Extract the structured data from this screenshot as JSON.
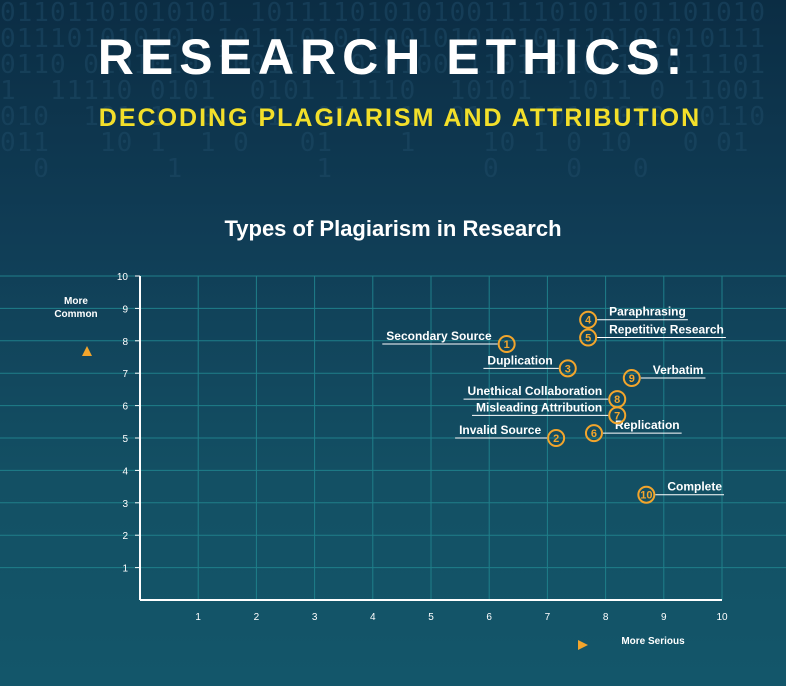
{
  "header": {
    "title": "RESEARCH ETHICS:",
    "subtitle": "DECODING PLAGIARISM AND ATTRIBUTION",
    "binary_rows": [
      "01101101010101 1011110101010011110101101101010",
      "011101010101 101110101100101010101110101010111",
      "0110 010101011001101 0101001110110100101011101",
      "1  11110 0101  0101 11110  10101  1011 0 11001",
      "010  101 1  0  01  01   1  01   101 1010  0110",
      "011   10 1  1 0   01    1    10 1 0 10   0 01",
      "  0       1        1         0    0   0   "
    ]
  },
  "colors": {
    "accent": "#f2a52c",
    "grid": "#1f7f8a",
    "axis": "#ffffff",
    "label": "#ffffff"
  },
  "chart_data": {
    "type": "scatter",
    "title": "Types of Plagiarism in Research",
    "xlabel": "More Serious",
    "ylabel": "More Common",
    "xlim": [
      0,
      10
    ],
    "ylim": [
      0,
      10
    ],
    "xticks": [
      1,
      2,
      3,
      4,
      5,
      6,
      7,
      8,
      9,
      10
    ],
    "yticks": [
      1,
      2,
      3,
      4,
      5,
      6,
      7,
      8,
      9,
      10
    ],
    "grid": true,
    "points": [
      {
        "id": "1",
        "label": "Secondary Source",
        "x": 6.3,
        "y": 7.9,
        "label_side": "left"
      },
      {
        "id": "2",
        "label": "Invalid Source",
        "x": 7.15,
        "y": 5.0,
        "label_side": "left"
      },
      {
        "id": "3",
        "label": "Duplication",
        "x": 7.35,
        "y": 7.15,
        "label_side": "left"
      },
      {
        "id": "4",
        "label": "Paraphrasing",
        "x": 7.7,
        "y": 8.65,
        "label_side": "right"
      },
      {
        "id": "5",
        "label": "Repetitive Research",
        "x": 7.7,
        "y": 8.1,
        "label_side": "right"
      },
      {
        "id": "6",
        "label": "Replication",
        "x": 7.8,
        "y": 5.15,
        "label_side": "right"
      },
      {
        "id": "7",
        "label": "Misleading Attribution",
        "x": 8.2,
        "y": 5.7,
        "label_side": "left"
      },
      {
        "id": "8",
        "label": "Unethical Collaboration",
        "x": 8.2,
        "y": 6.2,
        "label_side": "left"
      },
      {
        "id": "9",
        "label": "Verbatim",
        "x": 8.45,
        "y": 6.85,
        "label_side": "right"
      },
      {
        "id": "10",
        "label": "Complete",
        "x": 8.7,
        "y": 3.25,
        "label_side": "right"
      }
    ]
  }
}
